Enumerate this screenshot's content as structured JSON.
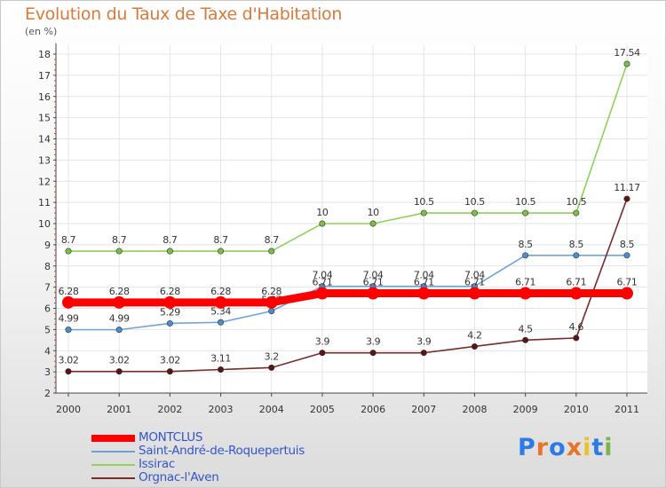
{
  "title": "Evolution du Taux de Taxe d'Habitation",
  "subtitle": "(en %)",
  "logo": {
    "letters": [
      "P",
      "r",
      "o",
      "x",
      "i",
      "t",
      "i"
    ],
    "colors": [
      "#2c7be5",
      "#e8742a",
      "#2c7be5",
      "#e8742a",
      "#e8c22a",
      "#2c7be5",
      "#7ab648"
    ]
  },
  "chart_data": {
    "type": "line",
    "categories": [
      "2000",
      "2001",
      "2002",
      "2003",
      "2004",
      "2005",
      "2006",
      "2007",
      "2008",
      "2009",
      "2010",
      "2011"
    ],
    "ylim": [
      2,
      18
    ],
    "yticks": [
      "2",
      "3",
      "4",
      "5",
      "6",
      "7",
      "8",
      "9",
      "10",
      "11",
      "12",
      "13",
      "14",
      "15",
      "16",
      "17",
      "18"
    ],
    "grid": true,
    "legend_position": "bottom-left",
    "series": [
      {
        "name": "Issirac",
        "color": "#8fd15a",
        "marker": "#7ac143",
        "values": [
          8.7,
          8.7,
          8.7,
          8.7,
          8.7,
          10,
          10,
          10.5,
          10.5,
          10.5,
          10.5,
          17.54
        ],
        "labels": [
          "8.7",
          "8.7",
          "8.7",
          "8.7",
          "8.7",
          "10",
          "10",
          "10.5",
          "10.5",
          "10.5",
          "10.5",
          "17.54"
        ]
      },
      {
        "name": "Saint-André-de-Roquepertuis",
        "color": "#6fa3d6",
        "marker": "#4b8ed0",
        "values": [
          4.99,
          4.99,
          5.29,
          5.34,
          5.87,
          7.04,
          7.04,
          7.04,
          7.04,
          8.5,
          8.5,
          8.5
        ],
        "labels": [
          "4.99",
          "4.99",
          "5.29",
          "5.34",
          "5.87",
          "7.04",
          "7.04",
          "7.04",
          "7.04",
          "8.5",
          "8.5",
          "8.5"
        ]
      },
      {
        "name": "Orgnac-l'Aven",
        "color": "#7a2a2a",
        "marker": "#5a1414",
        "values": [
          3.02,
          3.02,
          3.02,
          3.11,
          3.2,
          3.9,
          3.9,
          3.9,
          4.2,
          4.5,
          4.6,
          11.17
        ],
        "labels": [
          "3.02",
          "3.02",
          "3.02",
          "3.11",
          "3.2",
          "3.9",
          "3.9",
          "3.9",
          "4.2",
          "4.5",
          "4.6",
          "11.17"
        ]
      },
      {
        "name": "MONTCLUS",
        "color": "#ff0000",
        "marker": "#ff0000",
        "values": [
          6.28,
          6.28,
          6.28,
          6.28,
          6.28,
          6.71,
          6.71,
          6.71,
          6.71,
          6.71,
          6.71,
          6.71
        ],
        "labels": [
          "6.28",
          "6.28",
          "6.28",
          "6.28",
          "6.28",
          "6.71",
          "6.71",
          "6.71",
          "6.71",
          "6.71",
          "6.71",
          "6.71"
        ]
      }
    ],
    "legend": [
      {
        "name": "MONTCLUS",
        "color": "#ff0000",
        "text_color": "#3355cc"
      },
      {
        "name": "Saint-André-de-Roquepertuis",
        "color": "#6fa3d6",
        "text_color": "#3355cc"
      },
      {
        "name": "Issirac",
        "color": "#8fd15a",
        "text_color": "#3355cc"
      },
      {
        "name": "Orgnac-l'Aven",
        "color": "#7a2a2a",
        "text_color": "#3355cc"
      }
    ]
  }
}
